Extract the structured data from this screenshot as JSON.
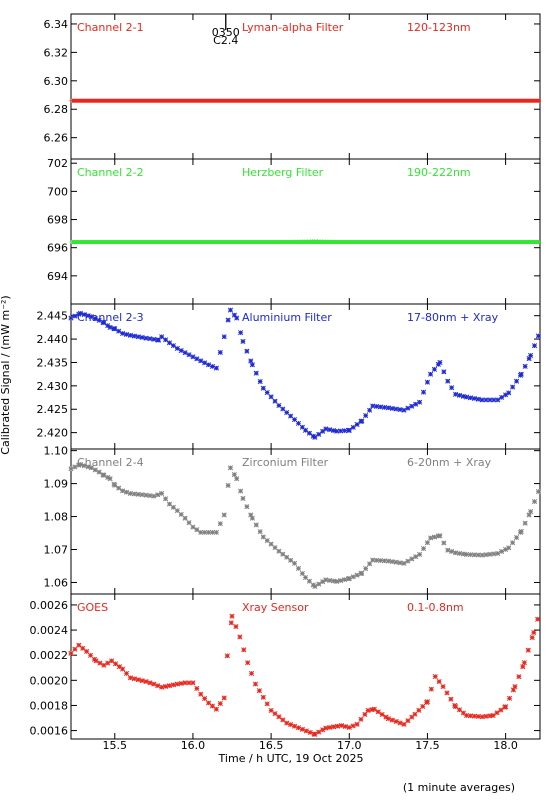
{
  "chart_data": {
    "type": "scatter",
    "xlabel": "Time / h UTC, 19 Oct 2025",
    "ylabel": "Calibrated Signal / (mW m⁻²)",
    "footnote": "(1 minute averages)",
    "x_range": [
      15.22,
      18.22
    ],
    "x_ticks": [
      "15.5",
      "16.0",
      "16.5",
      "17.0",
      "17.5",
      "18.0"
    ],
    "marker_annotation": {
      "time": 16.21,
      "lines": [
        "0350",
        "C2.4"
      ]
    },
    "panels": [
      {
        "channel": "Channel 2-1",
        "filter": "Lyman-alpha Filter",
        "band": "120-123nm",
        "color": "#e8281e",
        "ylim": [
          6.245,
          6.347
        ],
        "y_ticks": [
          "6.26",
          "6.28",
          "6.30",
          "6.32",
          "6.34"
        ],
        "points": [
          [
            15.22,
            6.286
          ],
          [
            15.5,
            6.286
          ],
          [
            16.0,
            6.286
          ],
          [
            16.5,
            6.286
          ],
          [
            17.0,
            6.286
          ],
          [
            17.5,
            6.286
          ],
          [
            18.0,
            6.286
          ],
          [
            18.22,
            6.286
          ]
        ]
      },
      {
        "channel": "Channel 2-2",
        "filter": "Herzberg Filter",
        "band": "190-222nm",
        "color": "#32e632",
        "ylim": [
          692.0,
          702.3
        ],
        "y_ticks": [
          "694",
          "696",
          "698",
          "700",
          "702"
        ],
        "points": [
          [
            15.22,
            696.4
          ],
          [
            15.5,
            696.4
          ],
          [
            16.0,
            696.4
          ],
          [
            16.5,
            696.4
          ],
          [
            16.78,
            696.5
          ],
          [
            17.0,
            696.4
          ],
          [
            17.5,
            696.4
          ],
          [
            18.0,
            696.4
          ],
          [
            18.22,
            696.4
          ]
        ]
      },
      {
        "channel": "Channel 2-3",
        "filter": "Aluminium Filter",
        "band": "17-80nm + Xray",
        "color": "#1e2ad2",
        "ylim": [
          2.4165,
          2.4475
        ],
        "y_ticks": [
          "2.420",
          "2.425",
          "2.430",
          "2.435",
          "2.440",
          "2.445"
        ],
        "points": [
          [
            15.22,
            2.4445
          ],
          [
            15.28,
            2.4455
          ],
          [
            15.35,
            2.4448
          ],
          [
            15.4,
            2.444
          ],
          [
            15.43,
            2.4435
          ],
          [
            15.47,
            2.4425
          ],
          [
            15.5,
            2.4422
          ],
          [
            15.55,
            2.4412
          ],
          [
            15.6,
            2.4408
          ],
          [
            15.7,
            2.4402
          ],
          [
            15.78,
            2.4398
          ],
          [
            15.8,
            2.4405
          ],
          [
            15.85,
            2.4392
          ],
          [
            15.9,
            2.438
          ],
          [
            16.0,
            2.4362
          ],
          [
            16.1,
            2.4345
          ],
          [
            16.15,
            2.4338
          ],
          [
            16.2,
            2.4405
          ],
          [
            16.24,
            2.4462
          ],
          [
            16.28,
            2.4445
          ],
          [
            16.32,
            2.4395
          ],
          [
            16.38,
            2.4345
          ],
          [
            16.45,
            2.4295
          ],
          [
            16.55,
            2.4258
          ],
          [
            16.65,
            2.4228
          ],
          [
            16.72,
            2.4205
          ],
          [
            16.78,
            2.419
          ],
          [
            16.85,
            2.4208
          ],
          [
            16.92,
            2.4203
          ],
          [
            17.0,
            2.4205
          ],
          [
            17.08,
            2.4225
          ],
          [
            17.15,
            2.4257
          ],
          [
            17.25,
            2.4253
          ],
          [
            17.35,
            2.4248
          ],
          [
            17.45,
            2.4265
          ],
          [
            17.52,
            2.4325
          ],
          [
            17.58,
            2.435
          ],
          [
            17.63,
            2.431
          ],
          [
            17.68,
            2.4282
          ],
          [
            17.75,
            2.4276
          ],
          [
            17.85,
            2.427
          ],
          [
            17.95,
            2.427
          ],
          [
            18.02,
            2.4285
          ],
          [
            18.1,
            2.4325
          ],
          [
            18.16,
            2.4365
          ],
          [
            18.22,
            2.4415
          ]
        ]
      },
      {
        "channel": "Channel 2-4",
        "filter": "Zirconium Filter",
        "band": "6-20nm + Xray",
        "color": "#808080",
        "ylim": [
          1.0565,
          1.1005
        ],
        "y_ticks": [
          "1.06",
          "1.07",
          "1.08",
          "1.09",
          "1.10"
        ],
        "points": [
          [
            15.22,
            1.0945
          ],
          [
            15.28,
            1.0958
          ],
          [
            15.35,
            1.0948
          ],
          [
            15.4,
            1.0935
          ],
          [
            15.43,
            1.0925
          ],
          [
            15.47,
            1.0915
          ],
          [
            15.5,
            1.0895
          ],
          [
            15.55,
            1.0878
          ],
          [
            15.6,
            1.087
          ],
          [
            15.7,
            1.0865
          ],
          [
            15.75,
            1.0862
          ],
          [
            15.8,
            1.087
          ],
          [
            15.85,
            1.0838
          ],
          [
            15.9,
            1.0818
          ],
          [
            15.95,
            1.0795
          ],
          [
            16.0,
            1.0768
          ],
          [
            16.05,
            1.0752
          ],
          [
            16.15,
            1.0752
          ],
          [
            16.2,
            1.0805
          ],
          [
            16.24,
            1.0948
          ],
          [
            16.28,
            1.0915
          ],
          [
            16.32,
            1.0855
          ],
          [
            16.38,
            1.0795
          ],
          [
            16.45,
            1.0738
          ],
          [
            16.55,
            1.0695
          ],
          [
            16.65,
            1.0658
          ],
          [
            16.72,
            1.0615
          ],
          [
            16.78,
            1.0588
          ],
          [
            16.85,
            1.0608
          ],
          [
            16.92,
            1.0603
          ],
          [
            17.0,
            1.0612
          ],
          [
            17.08,
            1.0628
          ],
          [
            17.15,
            1.0668
          ],
          [
            17.25,
            1.0665
          ],
          [
            17.35,
            1.0658
          ],
          [
            17.45,
            1.0685
          ],
          [
            17.52,
            1.0735
          ],
          [
            17.58,
            1.0742
          ],
          [
            17.63,
            1.0698
          ],
          [
            17.68,
            1.069
          ],
          [
            17.75,
            1.0685
          ],
          [
            17.85,
            1.0683
          ],
          [
            17.95,
            1.0688
          ],
          [
            18.02,
            1.0705
          ],
          [
            18.1,
            1.0755
          ],
          [
            18.16,
            1.0815
          ],
          [
            18.22,
            1.0888
          ]
        ]
      },
      {
        "channel": "GOES",
        "filter": "Xray Sensor",
        "band": "0.1-0.8nm",
        "color": "#e8281e",
        "ylim": [
          0.001533,
          0.002687
        ],
        "y_ticks": [
          "0.0016",
          "0.0018",
          "0.0020",
          "0.0022",
          "0.0024",
          "0.0026"
        ],
        "points": [
          [
            15.22,
            0.002215
          ],
          [
            15.27,
            0.00228
          ],
          [
            15.32,
            0.00223
          ],
          [
            15.38,
            0.002155
          ],
          [
            15.43,
            0.00212
          ],
          [
            15.48,
            0.002155
          ],
          [
            15.55,
            0.00209
          ],
          [
            15.6,
            0.00202
          ],
          [
            15.7,
            0.00199
          ],
          [
            15.75,
            0.00197
          ],
          [
            15.8,
            0.001945
          ],
          [
            15.9,
            0.00197
          ],
          [
            15.95,
            0.00198
          ],
          [
            16.0,
            0.00198
          ],
          [
            16.05,
            0.00189
          ],
          [
            16.1,
            0.00182
          ],
          [
            16.15,
            0.00177
          ],
          [
            16.2,
            0.00186
          ],
          [
            16.22,
            0.002195
          ],
          [
            16.25,
            0.00251
          ],
          [
            16.3,
            0.002345
          ],
          [
            16.35,
            0.00214
          ],
          [
            16.4,
            0.00197
          ],
          [
            16.5,
            0.00176
          ],
          [
            16.6,
            0.00166
          ],
          [
            16.7,
            0.00161
          ],
          [
            16.78,
            0.00157
          ],
          [
            16.85,
            0.00162
          ],
          [
            16.95,
            0.00164
          ],
          [
            17.0,
            0.001625
          ],
          [
            17.05,
            0.00165
          ],
          [
            17.12,
            0.00176
          ],
          [
            17.16,
            0.00177
          ],
          [
            17.25,
            0.001695
          ],
          [
            17.35,
            0.00165
          ],
          [
            17.42,
            0.00173
          ],
          [
            17.5,
            0.00183
          ],
          [
            17.55,
            0.00203
          ],
          [
            17.6,
            0.00195
          ],
          [
            17.68,
            0.00179
          ],
          [
            17.75,
            0.00172
          ],
          [
            17.85,
            0.00171
          ],
          [
            17.92,
            0.00172
          ],
          [
            18.0,
            0.00179
          ],
          [
            18.06,
            0.00195
          ],
          [
            18.12,
            0.00214
          ],
          [
            18.18,
            0.00238
          ],
          [
            18.22,
            0.00255
          ]
        ]
      }
    ]
  }
}
